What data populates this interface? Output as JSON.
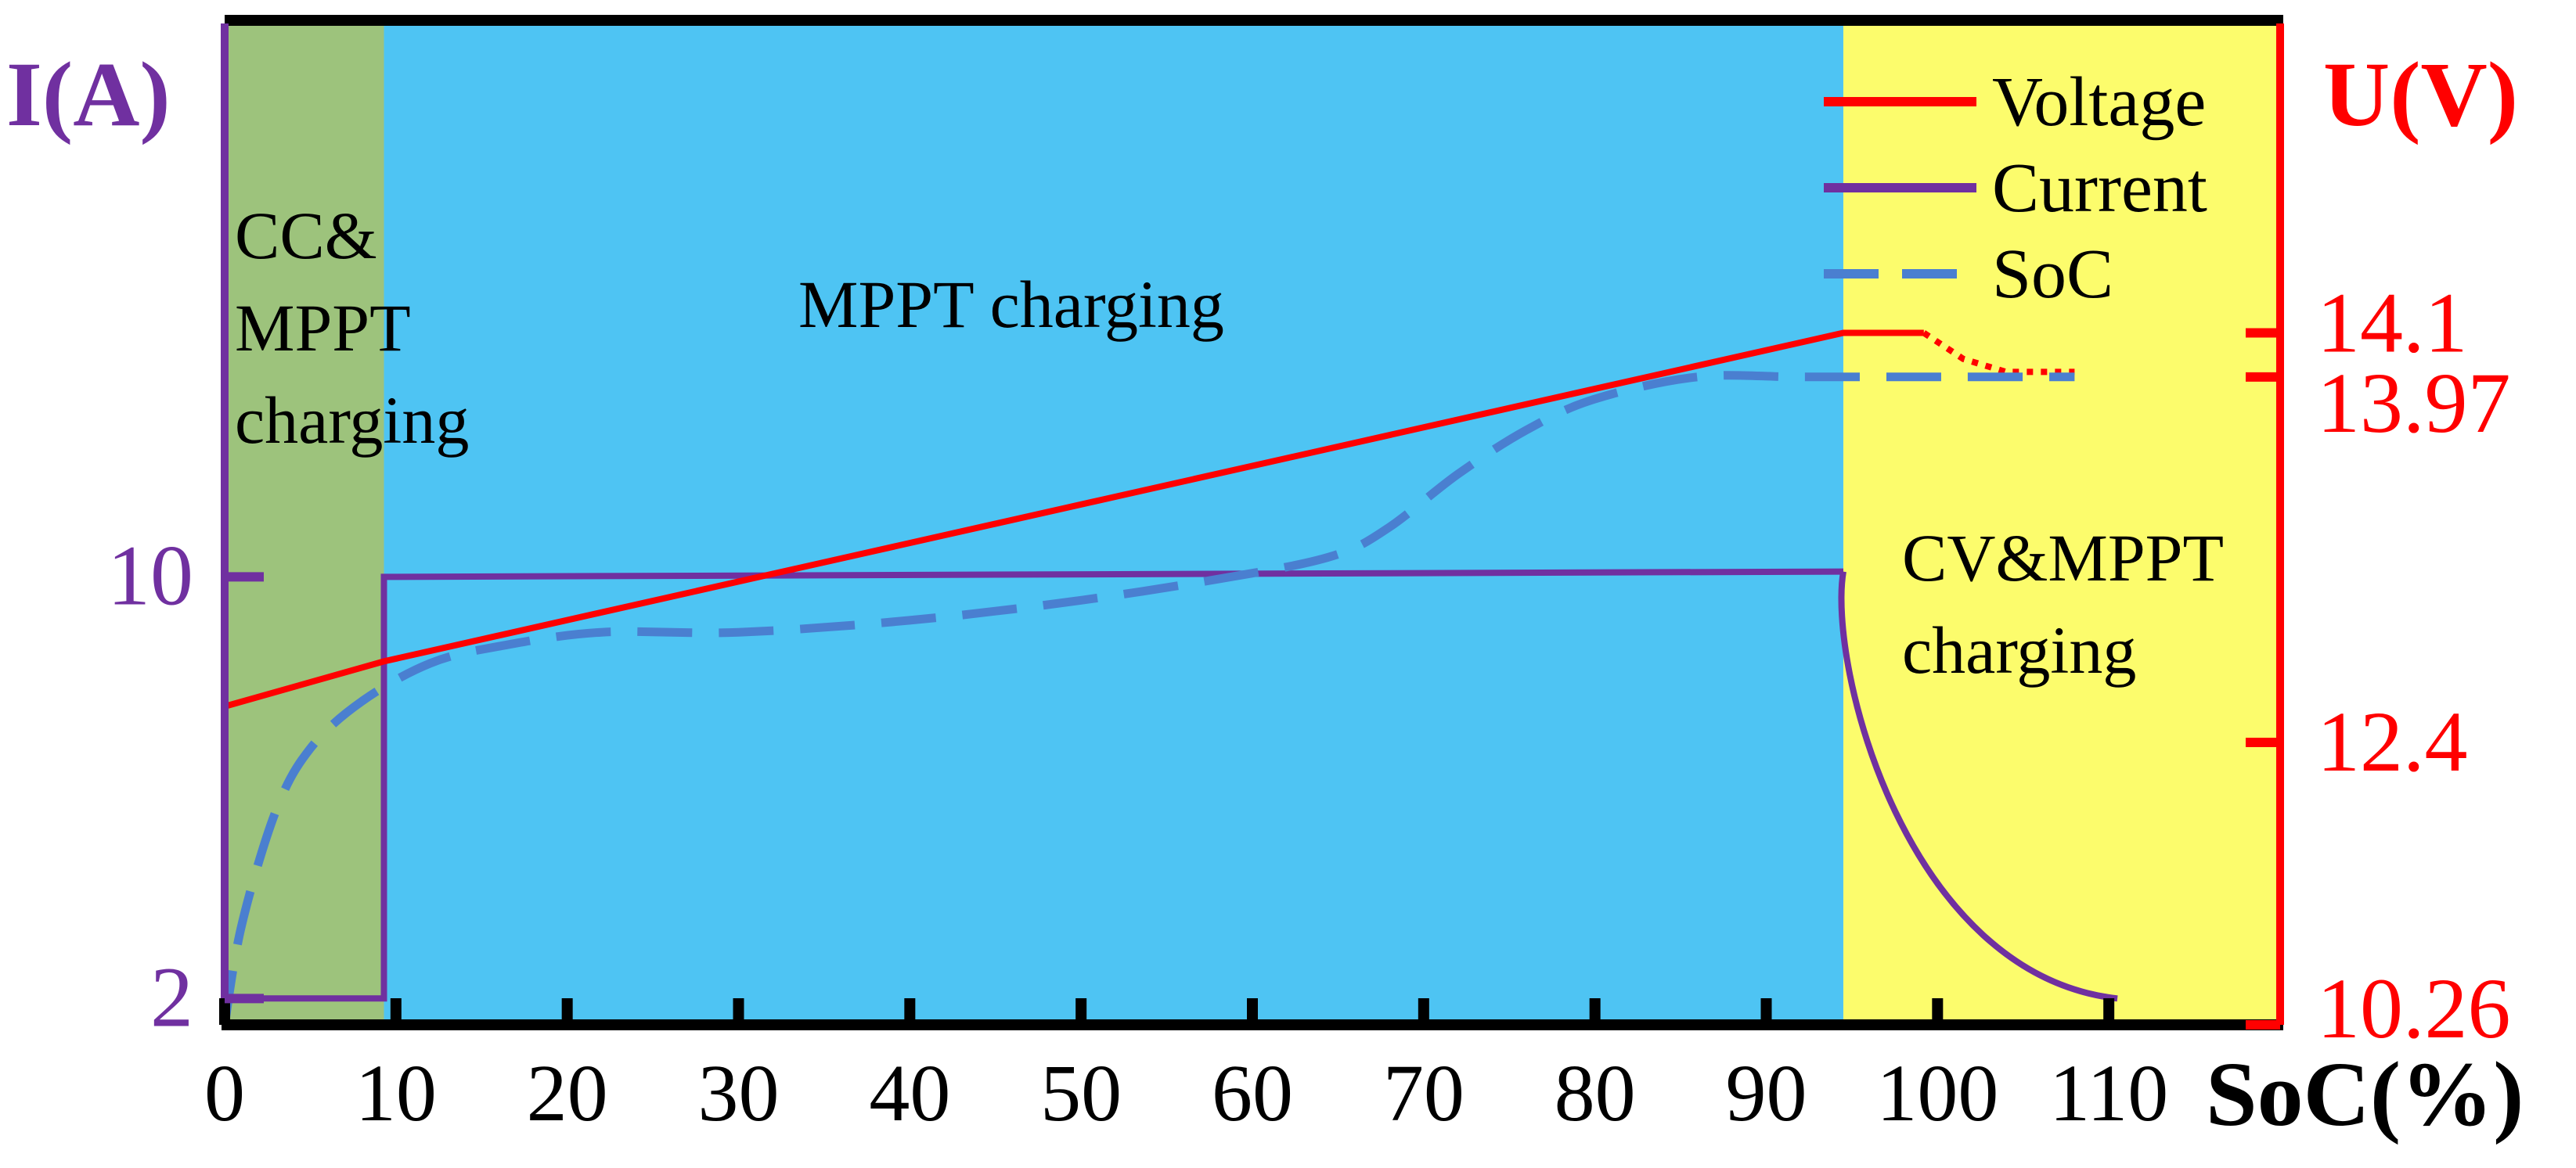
{
  "chart_data": {
    "type": "line",
    "x_label": "SoC(%)",
    "y_left_label": "I(A)",
    "y_right_label": "U(V)",
    "x_ticks": [
      0,
      10,
      20,
      30,
      40,
      50,
      60,
      70,
      80,
      90,
      100,
      110
    ],
    "x_range": [
      0,
      120
    ],
    "left_ticks": [
      {
        "label": "10",
        "value": 10
      },
      {
        "label": "2",
        "value": 2
      }
    ],
    "left_range": [
      1.5,
      20.5
    ],
    "right_ticks": [
      {
        "label": "14.1",
        "value": 14.1
      },
      {
        "label": "13.97",
        "value": 13.97
      },
      {
        "label": "12.4",
        "value": 12.4
      },
      {
        "label": "10.26",
        "value": 10.26
      }
    ],
    "right_scale_note": "right axis labels are non-uniform; ticks placed at their drawn levels",
    "right_tick_levels": {
      "14.1": 0.691,
      "13.97": 0.647,
      "12.4": 0.282,
      "10.26": 0.0
    },
    "regions": [
      {
        "name": "CC&MPPT charging",
        "lines": [
          "CC&",
          "MPPT",
          "charging"
        ],
        "x_start": 0,
        "x_end": 9.3,
        "color": "#9dc37c"
      },
      {
        "name": "MPPT charging",
        "lines": [
          "MPPT charging"
        ],
        "x_start": 9.3,
        "x_end": 94.5,
        "color": "#4ec4f3"
      },
      {
        "name": "CV&MPPT charging",
        "lines": [
          "CV&MPPT",
          "charging"
        ],
        "x_start": 94.5,
        "x_end": 120,
        "color": "#fcfc6c"
      }
    ],
    "legend": [
      {
        "label": "Voltage",
        "color": "#ff0000",
        "style": "solid"
      },
      {
        "label": "Current",
        "color": "#7030a0",
        "style": "solid"
      },
      {
        "label": "SoC",
        "color": "#4a7fd0",
        "style": "dashed"
      }
    ],
    "series": [
      {
        "name": "Current",
        "axis": "left",
        "color": "#7030a0",
        "points": [
          [
            0,
            20.5
          ],
          [
            0,
            2
          ],
          [
            9.3,
            2
          ],
          [
            9.3,
            10
          ],
          [
            94.5,
            10.1
          ]
        ],
        "cv_decay": {
          "x_start": 94.5,
          "x_end": 110.5,
          "y_start": 10.1,
          "y_end": 2
        }
      },
      {
        "name": "Voltage",
        "axis": "right",
        "color": "#ff0000",
        "points": [
          [
            0,
            0.318
          ],
          [
            9.3,
            0.363
          ],
          [
            94.5,
            0.691
          ],
          [
            99.2,
            0.691
          ]
        ],
        "dotted_tail": [
          [
            99.2,
            0.691
          ],
          [
            101.5,
            0.665
          ],
          [
            104,
            0.652
          ],
          [
            108,
            0.652
          ]
        ]
      },
      {
        "name": "SoC",
        "axis": "right",
        "color": "#4a7fd0",
        "dashed": true,
        "points": [
          [
            0,
            0.0
          ],
          [
            1,
            0.1
          ],
          [
            3,
            0.214
          ],
          [
            5,
            0.276
          ],
          [
            8,
            0.323
          ],
          [
            12,
            0.361
          ],
          [
            16,
            0.378
          ],
          [
            22,
            0.392
          ],
          [
            30,
            0.392
          ],
          [
            40,
            0.404
          ],
          [
            50,
            0.424
          ],
          [
            60,
            0.451
          ],
          [
            65,
            0.47
          ],
          [
            68,
            0.497
          ],
          [
            72,
            0.55
          ],
          [
            76,
            0.594
          ],
          [
            80,
            0.625
          ],
          [
            86,
            0.647
          ],
          [
            92,
            0.647
          ],
          [
            100,
            0.647
          ],
          [
            108,
            0.647
          ]
        ]
      }
    ]
  }
}
